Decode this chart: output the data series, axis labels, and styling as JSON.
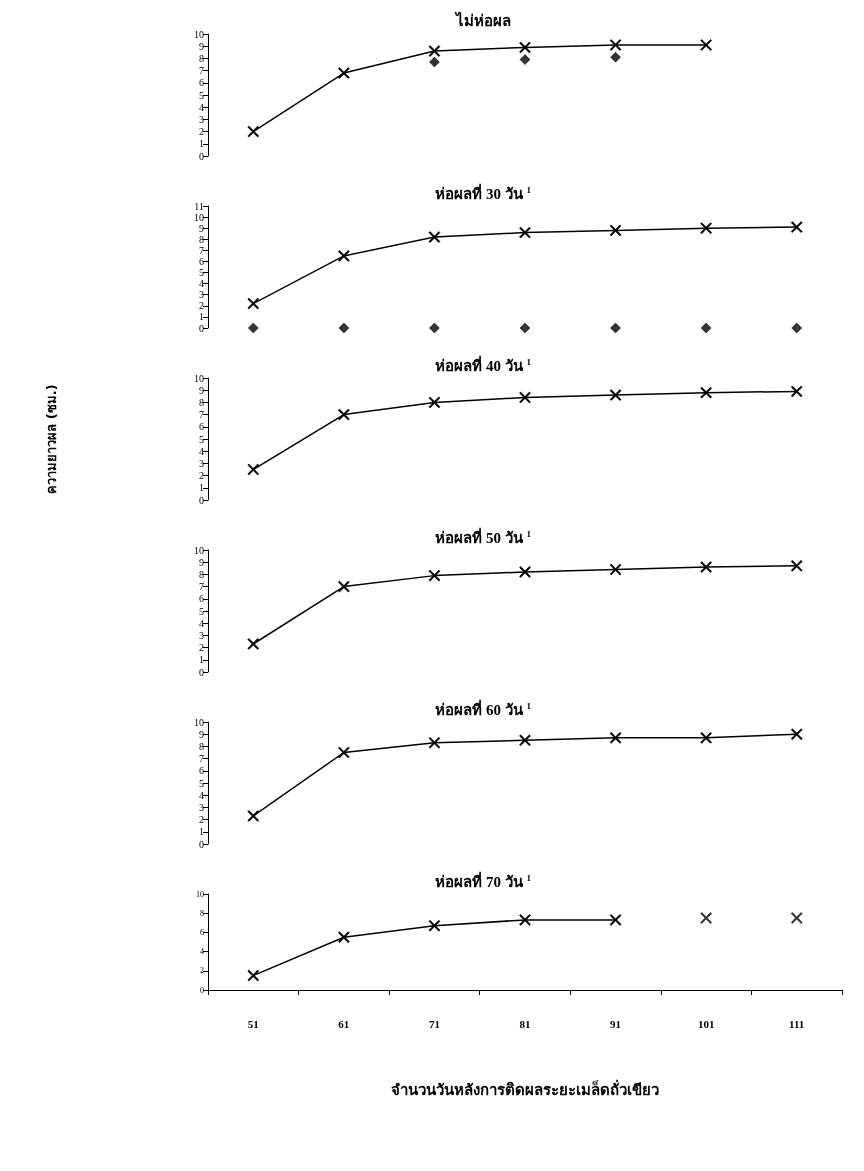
{
  "chart_data": [
    {
      "type": "line",
      "title": "ไม่ห่อผล",
      "categories": [
        "51",
        "61",
        "71",
        "81",
        "91",
        "101",
        "111"
      ],
      "ylim": [
        0,
        10
      ],
      "yticks": [
        0,
        1,
        2,
        3,
        4,
        5,
        6,
        7,
        8,
        9,
        10
      ],
      "grid": false,
      "tick_labels": "y",
      "marker": "cross",
      "line_style": "solid",
      "series": [
        {
          "color": "#000000",
          "values": [
            2,
            6.8,
            8.6,
            8.9,
            9.1,
            9.1,
            null
          ]
        },
        {
          "type": "scatter",
          "marker": "diamond",
          "color": "#000000",
          "values": [
            null,
            null,
            7.7,
            7.9,
            8.1,
            null,
            null
          ]
        }
      ]
    },
    {
      "type": "line",
      "title": "ห่อผลที่ 30 วัน $^{1}$",
      "categories": [
        "51",
        "61",
        "71",
        "81",
        "91",
        "101",
        "111"
      ],
      "ylim": [
        0,
        11
      ],
      "yticks": [
        0,
        1,
        2,
        3,
        4,
        5,
        6,
        7,
        8,
        9,
        10,
        11
      ],
      "grid": false,
      "tick_labels": "y",
      "marker": "cross",
      "line_style": "solid",
      "series": [
        {
          "color": "#000000",
          "values": [
            2.2,
            6.5,
            8.2,
            8.6,
            8.8,
            9.0,
            9.1
          ]
        },
        {
          "type": "scatter",
          "marker": "diamond",
          "color": "#000000",
          "values": [
            0,
            0,
            0,
            0,
            0,
            0,
            0
          ]
        }
      ]
    },
    {
      "type": "line",
      "title": "ห่อผลที่ 40 วัน $^{1}$",
      "ylabel": "ความยาวผล (ซม.)",
      "categories": [
        "51",
        "61",
        "71",
        "81",
        "91",
        "101",
        "111"
      ],
      "ylim": [
        0,
        10
      ],
      "yticks": [
        0,
        1,
        2,
        3,
        4,
        5,
        6,
        7,
        8,
        9,
        10
      ],
      "grid": false,
      "tick_labels": "y",
      "marker": "cross",
      "line_style": "solid",
      "series": [
        {
          "color": "#000000",
          "values": [
            2.5,
            7.0,
            8.0,
            8.4,
            8.6,
            8.8,
            8.9
          ]
        }
      ]
    },
    {
      "type": "line",
      "title": "ห่อผลที่ 50 วัน $^{1}$",
      "categories": [
        "51",
        "61",
        "71",
        "81",
        "91",
        "101",
        "111"
      ],
      "ylim": [
        0,
        10
      ],
      "yticks": [
        0,
        1,
        2,
        3,
        4,
        5,
        6,
        7,
        8,
        9,
        10
      ],
      "grid": false,
      "tick_labels": "y",
      "marker": "cross",
      "line_style": "solid",
      "series": [
        {
          "color": "#000000",
          "values": [
            2.3,
            7.0,
            7.9,
            8.2,
            8.4,
            8.6,
            8.7
          ]
        }
      ]
    },
    {
      "type": "line",
      "title": "ห่อผลที่ 60 วัน $^{1}$",
      "categories": [
        "51",
        "61",
        "71",
        "81",
        "91",
        "101",
        "111"
      ],
      "ylim": [
        0,
        10
      ],
      "yticks": [
        0,
        1,
        2,
        3,
        4,
        5,
        6,
        7,
        8,
        9,
        10
      ],
      "grid": false,
      "tick_labels": "y",
      "marker": "cross",
      "line_style": "solid",
      "series": [
        {
          "color": "#000000",
          "values": [
            2.3,
            7.5,
            8.3,
            8.5,
            8.7,
            8.7,
            9.0
          ]
        }
      ]
    },
    {
      "type": "line",
      "title": "ห่อผลที่ 70 วัน $^{1}$",
      "xlabel": "จำนวนวันหลังการติดผลระยะเมล็ดถั่วเขียว",
      "categories": [
        "51",
        "61",
        "71",
        "81",
        "91",
        "101",
        "111"
      ],
      "ylim": [
        0,
        10
      ],
      "yticks": [
        0,
        2,
        4,
        6,
        8,
        10
      ],
      "grid": false,
      "marker": "cross",
      "line_style": "solid",
      "series": [
        {
          "color": "#000000",
          "values": [
            1.5,
            5.5,
            6.7,
            7.3,
            7.3,
            null,
            null
          ]
        },
        {
          "type": "scatter",
          "marker": "cross",
          "color": "#000000",
          "values": [
            null,
            null,
            null,
            null,
            null,
            7.5,
            7.5
          ]
        }
      ]
    }
  ]
}
